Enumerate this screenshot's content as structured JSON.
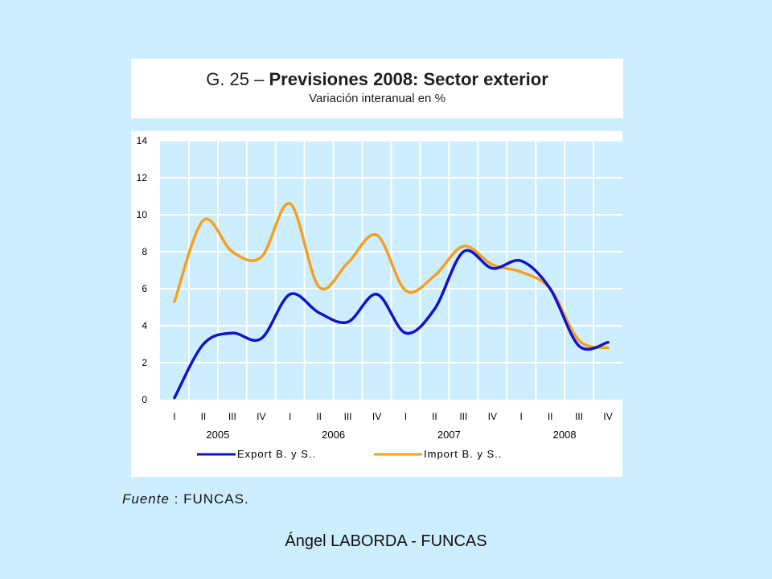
{
  "header": {
    "title_prefix": "G. 25 –",
    "title_bold": "Previsiones 2008: Sector exterior",
    "subtitle": "Variación interanual en %"
  },
  "source": {
    "label": "Fuente",
    "text": ": FUNCAS."
  },
  "footer": {
    "text": "Ángel LABORDA - FUNCAS"
  },
  "colors": {
    "page_bg": "#cdeefe",
    "plot_bg": "#cdeefe",
    "export": "#1212cc",
    "import": "#f5a020",
    "grid": "#ffffff"
  },
  "chart_data": {
    "type": "line",
    "title": "",
    "xlabel": "",
    "ylabel": "",
    "ylim": [
      0,
      14
    ],
    "yticks": [
      0,
      2,
      4,
      6,
      8,
      10,
      12,
      14
    ],
    "grid": true,
    "legend_position": "bottom",
    "categories": [
      "I",
      "II",
      "III",
      "IV",
      "I",
      "II",
      "III",
      "IV",
      "I",
      "II",
      "III",
      "IV",
      "I",
      "II",
      "III",
      "IV"
    ],
    "years": [
      "2005",
      "2006",
      "2007",
      "2008"
    ],
    "series": [
      {
        "name": "Export B. y S..",
        "color": "#1212cc",
        "values": [
          0.1,
          3.0,
          3.6,
          3.3,
          5.7,
          4.7,
          4.2,
          5.7,
          3.6,
          4.9,
          8.0,
          7.1,
          7.5,
          6.0,
          2.9,
          3.1
        ]
      },
      {
        "name": "Import B. y S..",
        "color": "#f5a020",
        "values": [
          5.3,
          9.7,
          8.0,
          7.7,
          10.6,
          6.1,
          7.4,
          8.9,
          5.9,
          6.7,
          8.3,
          7.3,
          6.9,
          6.0,
          3.2,
          2.8
        ]
      }
    ]
  }
}
